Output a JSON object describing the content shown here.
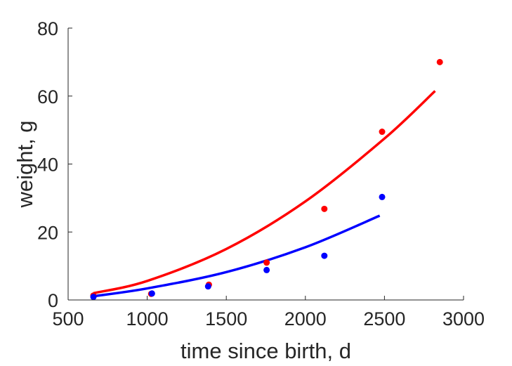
{
  "chart_data": {
    "type": "scatter",
    "title": "",
    "xlabel": "time since birth, d",
    "ylabel": "weight, g",
    "xlim": [
      500,
      3000
    ],
    "ylim": [
      0,
      80
    ],
    "xticks": [
      500,
      1000,
      1500,
      2000,
      2500,
      3000
    ],
    "yticks": [
      0,
      20,
      40,
      60,
      80
    ],
    "grid": false,
    "series": [
      {
        "color": "#ff0000",
        "points": [
          {
            "x": 660,
            "y": 1.3
          },
          {
            "x": 1025,
            "y": 1.8
          },
          {
            "x": 1390,
            "y": 4.5
          },
          {
            "x": 1755,
            "y": 11.0
          },
          {
            "x": 2120,
            "y": 26.8
          },
          {
            "x": 2485,
            "y": 49.5
          },
          {
            "x": 2850,
            "y": 70.0
          }
        ],
        "fit": [
          {
            "x": 660,
            "y": 2.0
          },
          {
            "x": 1000,
            "y": 5.6
          },
          {
            "x": 1500,
            "y": 15.0
          },
          {
            "x": 2000,
            "y": 29.0
          },
          {
            "x": 2500,
            "y": 47.5
          },
          {
            "x": 2820,
            "y": 61.5
          }
        ]
      },
      {
        "color": "#0000ff",
        "points": [
          {
            "x": 660,
            "y": 0.9
          },
          {
            "x": 1030,
            "y": 1.9
          },
          {
            "x": 1385,
            "y": 4.0
          },
          {
            "x": 1755,
            "y": 8.8
          },
          {
            "x": 2120,
            "y": 13.0
          },
          {
            "x": 2485,
            "y": 30.3
          }
        ],
        "fit": [
          {
            "x": 660,
            "y": 1.1
          },
          {
            "x": 1000,
            "y": 3.4
          },
          {
            "x": 1500,
            "y": 8.2
          },
          {
            "x": 2000,
            "y": 15.5
          },
          {
            "x": 2470,
            "y": 24.8
          }
        ]
      }
    ]
  }
}
